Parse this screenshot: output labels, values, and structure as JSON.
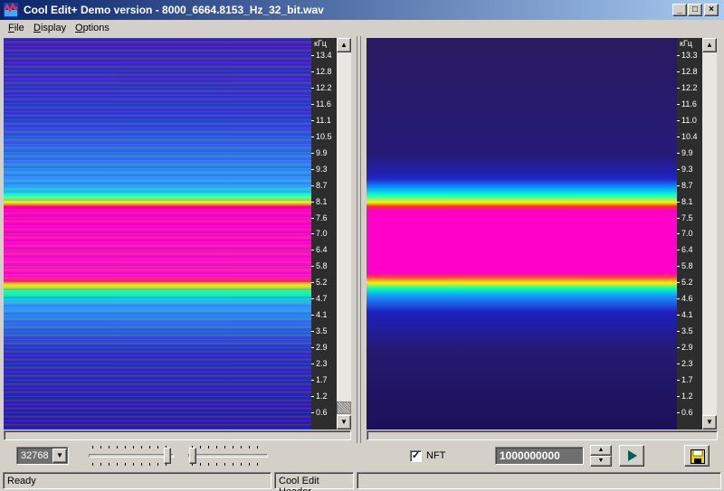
{
  "window": {
    "title": "Cool Edit+  Demo version - 8000_6664.8153_Hz_32_bit.wav",
    "min_label": "_",
    "max_label": "□",
    "close_label": "×"
  },
  "menu": {
    "file": {
      "underline": "F",
      "rest": "ile"
    },
    "display": {
      "underline": "D",
      "rest": "isplay"
    },
    "options": {
      "underline": "O",
      "rest": "ptions"
    }
  },
  "left_panel": {
    "axis_unit": "кГц",
    "ticks": [
      "13.4",
      "12.8",
      "12.2",
      "11.6",
      "11.1",
      "10.5",
      "9.9",
      "9.3",
      "8.7",
      "8.1",
      "7.6",
      "7.0",
      "6.4",
      "5.8",
      "5.2",
      "4.7",
      "4.1",
      "3.5",
      "2.9",
      "2.3",
      "1.7",
      "1.2",
      "0.6"
    ]
  },
  "right_panel": {
    "axis_unit": "кГц",
    "ticks": [
      "13.3",
      "12.8",
      "12.2",
      "11.6",
      "11.0",
      "10.4",
      "9.9",
      "9.3",
      "8.7",
      "8.1",
      "7.5",
      "7.0",
      "6.4",
      "5.8",
      "5.2",
      "4.6",
      "4.1",
      "3.5",
      "2.9",
      "2.3",
      "1.7",
      "1.2",
      "0.6"
    ]
  },
  "controls": {
    "fft_size": "32768",
    "checkbox_label": "NFT",
    "checkbox_checked": true,
    "check_mark": "✓",
    "amplitude_value": "1000000000"
  },
  "status": {
    "ready": "Ready",
    "header": "Cool Edit Header",
    "empty": ""
  },
  "icons": {
    "app": "cool-edit-icon",
    "play": "play-icon",
    "save": "floppy-disk-icon"
  }
}
